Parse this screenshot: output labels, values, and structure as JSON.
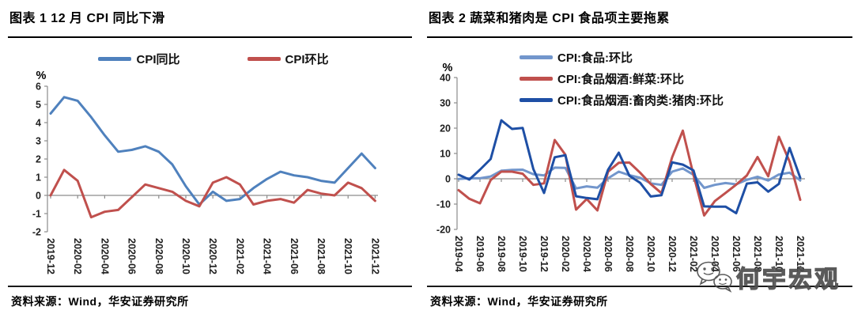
{
  "panels": [
    {
      "title": "图表 1 12 月 CPI 同比下滑",
      "source": "资料来源：Wind，华安证券研究所"
    },
    {
      "title": "图表 2 蔬菜和猪肉是 CPI 食品项主要拖累",
      "source": "资料来源：Wind，华安证券研究所"
    }
  ],
  "watermark": {
    "icon": "wechat-icon",
    "text": "何宇宏观"
  },
  "colors": {
    "axis_gray": "#8C8C8C",
    "cpi_yoy_blue": "#4F81BD",
    "cpi_mom_red": "#C0504D",
    "food_light_blue": "#7296CC",
    "veg_red": "#C0504D",
    "pork_dark_blue": "#1E4FA5"
  },
  "chart_data": [
    {
      "type": "line",
      "title": "图表 1 12 月 CPI 同比下滑",
      "ylabel": "%",
      "xlabel": "",
      "ylim": [
        -2,
        6
      ],
      "ytick_step": 1,
      "x_tick_interval": 2,
      "grid": "zero-line-only",
      "legend_position": "top-horizontal",
      "x": [
        "2019-12",
        "2020-01",
        "2020-02",
        "2020-03",
        "2020-04",
        "2020-05",
        "2020-06",
        "2020-07",
        "2020-08",
        "2020-09",
        "2020-10",
        "2020-11",
        "2020-12",
        "2021-01",
        "2021-02",
        "2021-03",
        "2021-04",
        "2021-05",
        "2021-06",
        "2021-07",
        "2021-08",
        "2021-09",
        "2021-10",
        "2021-11",
        "2021-12"
      ],
      "series": [
        {
          "name": "CPI同比",
          "color": "#4F81BD",
          "values": [
            4.5,
            5.4,
            5.2,
            4.3,
            3.3,
            2.4,
            2.5,
            2.7,
            2.4,
            1.7,
            0.5,
            -0.5,
            0.2,
            -0.3,
            -0.2,
            0.4,
            0.9,
            1.3,
            1.1,
            1.0,
            0.8,
            0.7,
            1.5,
            2.3,
            1.5
          ]
        },
        {
          "name": "CPI环比",
          "color": "#C0504D",
          "values": [
            0.0,
            1.4,
            0.8,
            -1.2,
            -0.9,
            -0.8,
            -0.1,
            0.6,
            0.4,
            0.2,
            -0.3,
            -0.6,
            0.7,
            1.0,
            0.6,
            -0.5,
            -0.3,
            -0.2,
            -0.4,
            0.3,
            0.1,
            0.0,
            0.7,
            0.4,
            -0.3
          ]
        }
      ]
    },
    {
      "type": "line",
      "title": "图表 2 蔬菜和猪肉是 CPI 食品项主要拖累",
      "ylabel": "%",
      "xlabel": "",
      "ylim": [
        -20,
        40
      ],
      "ytick_step": 10,
      "x_tick_interval": 2,
      "grid": "zero-line-only",
      "legend_position": "top-stacked",
      "x": [
        "2019-04",
        "2019-05",
        "2019-06",
        "2019-07",
        "2019-08",
        "2019-09",
        "2019-10",
        "2019-11",
        "2019-12",
        "2020-01",
        "2020-02",
        "2020-03",
        "2020-04",
        "2020-05",
        "2020-06",
        "2020-07",
        "2020-08",
        "2020-09",
        "2020-10",
        "2020-11",
        "2020-12",
        "2021-01",
        "2021-02",
        "2021-03",
        "2021-04",
        "2021-05",
        "2021-06",
        "2021-07",
        "2021-08",
        "2021-09",
        "2021-10",
        "2021-11",
        "2021-12"
      ],
      "series": [
        {
          "name": "CPI:食品:环比",
          "color": "#7296CC",
          "values": [
            -0.1,
            0.2,
            0.2,
            0.9,
            3.2,
            3.5,
            3.6,
            1.8,
            1.3,
            4.4,
            4.3,
            -3.8,
            -3.0,
            -3.5,
            0.2,
            2.8,
            1.4,
            0.4,
            -1.8,
            -2.4,
            2.8,
            4.1,
            1.6,
            -3.6,
            -2.4,
            -1.7,
            -2.2,
            -0.4,
            0.8,
            -0.7,
            1.7,
            2.4,
            -0.6
          ]
        },
        {
          "name": "CPI:食品烟酒:鲜菜:环比",
          "color": "#C0504D",
          "values": [
            -4.5,
            -7.9,
            -9.7,
            -0.5,
            2.8,
            2.8,
            2.0,
            -2.4,
            -1.8,
            15.3,
            9.5,
            -12.2,
            -8.0,
            -12.5,
            2.8,
            6.3,
            6.4,
            2.4,
            -2.1,
            -5.7,
            8.5,
            19.0,
            1.5,
            -14.5,
            -8.8,
            -5.6,
            -2.3,
            1.3,
            8.6,
            1.0,
            16.6,
            6.8,
            -8.3
          ]
        },
        {
          "name": "CPI:食品烟酒:畜肉类:猪肉:环比",
          "color": "#1E4FA5",
          "values": [
            1.6,
            -0.3,
            3.6,
            7.8,
            23.1,
            19.7,
            20.1,
            3.8,
            -5.6,
            8.5,
            9.3,
            -6.9,
            -7.6,
            -8.1,
            3.6,
            10.3,
            1.2,
            -1.6,
            -7.0,
            -6.5,
            6.5,
            5.6,
            3.3,
            -10.9,
            -11.0,
            -11.0,
            -13.6,
            -1.9,
            -1.4,
            -5.1,
            -2.0,
            12.2,
            0.4
          ]
        }
      ]
    }
  ]
}
